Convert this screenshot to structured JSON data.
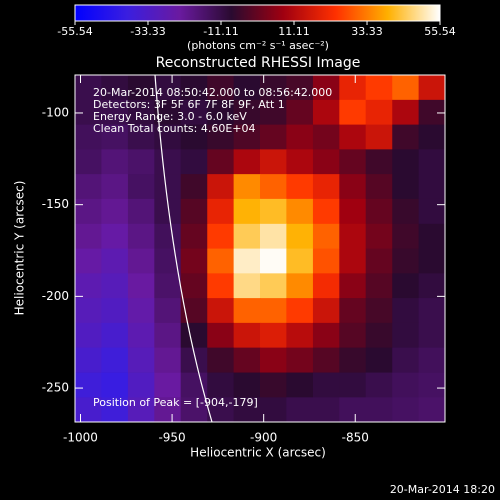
{
  "chart_data": {
    "type": "heatmap",
    "title": "Reconstructed RHESSI Image",
    "x_label": "Heliocentric X (arcsec)",
    "y_label": "Heliocentric Y (arcsec)",
    "annotations": [
      "20-Mar-2014 08:50:42.000 to 08:56:42.000",
      "Detectors: 3F 5F 6F 7F 8F 9F, Att 1",
      "Energy Range: 3.0 - 6.0 keV",
      "Clean    Total counts: 4.60E+04"
    ],
    "peak_label": "Position of Peak = [-904,-179]",
    "footer": "20-Mar-2014 18:20",
    "colorbar_label": "(photons cm⁻² s⁻¹ asec⁻²)",
    "clim": [
      -55.54,
      55.54
    ],
    "cticks": [
      -55.54,
      -33.33,
      -11.11,
      11.11,
      33.33,
      55.54
    ],
    "colormap": [
      "#0000ff",
      "#3a1ee0",
      "#6a1aa0",
      "#2a0a30",
      "#a00010",
      "#ff3000",
      "#ffb000",
      "#ffffff"
    ],
    "xlim": [
      -1003,
      -801
    ],
    "ylim": [
      -268.5,
      -79.3
    ],
    "xticks": [
      -1000,
      -950,
      -900,
      -850
    ],
    "yticks": [
      -250,
      -200,
      -150,
      -100
    ],
    "x": [
      -995.8,
      -981.4,
      -966.9,
      -952.5,
      -938.1,
      -923.6,
      -909.2,
      -894.8,
      -880.4,
      -865.9,
      -851.5,
      -837.1,
      -822.6,
      -808.2
    ],
    "y": [
      -86.1,
      -99.6,
      -113.1,
      -126.6,
      -140.1,
      -153.6,
      -167.2,
      -180.7,
      -194.2,
      -207.7,
      -221.2,
      -234.7,
      -248.3,
      -261.8
    ],
    "z": [
      [
        -12,
        -10,
        -8,
        -10,
        -8,
        -5,
        -8,
        -6,
        -4,
        5,
        20,
        25,
        30,
        15
      ],
      [
        -12,
        -12,
        -10,
        -8,
        -10,
        -8,
        -6,
        -5,
        0,
        10,
        25,
        20,
        10,
        -5
      ],
      [
        -14,
        -15,
        -12,
        -10,
        -8,
        -6,
        -3,
        0,
        5,
        2,
        10,
        15,
        -5,
        -8
      ],
      [
        -15,
        -18,
        -16,
        -12,
        -10,
        0,
        10,
        15,
        10,
        5,
        0,
        -5,
        -8,
        -10
      ],
      [
        -18,
        -20,
        -15,
        -12,
        -5,
        15,
        35,
        30,
        25,
        20,
        5,
        -2,
        -8,
        -10
      ],
      [
        -20,
        -22,
        -18,
        -12,
        -2,
        20,
        40,
        42,
        35,
        25,
        8,
        0,
        -6,
        -10
      ],
      [
        -22,
        -25,
        -20,
        -14,
        0,
        25,
        45,
        50,
        40,
        30,
        10,
        2,
        -5,
        -8
      ],
      [
        -25,
        -28,
        -22,
        -15,
        2,
        30,
        52,
        55,
        42,
        28,
        10,
        0,
        -6,
        -8
      ],
      [
        -28,
        -30,
        -24,
        -16,
        0,
        25,
        48,
        45,
        35,
        22,
        5,
        -2,
        -8,
        -10
      ],
      [
        -30,
        -32,
        -26,
        -18,
        -2,
        15,
        30,
        30,
        25,
        15,
        0,
        -4,
        -10,
        -12
      ],
      [
        -32,
        -35,
        -28,
        -20,
        -8,
        5,
        15,
        18,
        12,
        5,
        -2,
        -6,
        -10,
        -12
      ],
      [
        -35,
        -38,
        -30,
        -22,
        -12,
        -5,
        0,
        5,
        2,
        -2,
        -6,
        -8,
        -12,
        -14
      ],
      [
        -38,
        -40,
        -32,
        -24,
        -15,
        -10,
        -8,
        -6,
        -8,
        -10,
        -10,
        -12,
        -14,
        -15
      ],
      [
        -35,
        -38,
        -30,
        -22,
        -16,
        -12,
        -10,
        -10,
        -12,
        -12,
        -14,
        -14,
        -15,
        -16
      ]
    ]
  }
}
